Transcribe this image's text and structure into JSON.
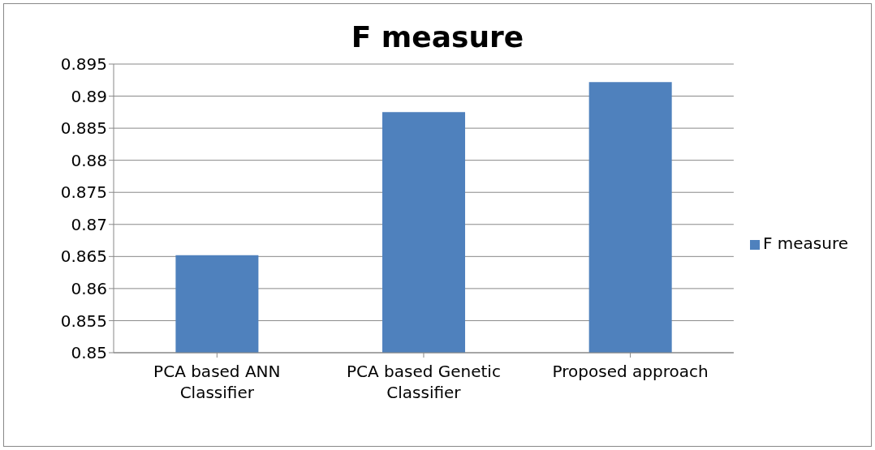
{
  "chart_data": {
    "type": "bar",
    "title": "F measure",
    "categories": [
      "PCA based ANN Classifier",
      "PCA based Genetic Classifier",
      "Proposed approach"
    ],
    "series": [
      {
        "name": "F measure",
        "color": "#4f81bd",
        "values": [
          0.8652,
          0.8875,
          0.8922
        ]
      }
    ],
    "ylim": [
      0.85,
      0.895
    ],
    "yticks": [
      0.85,
      0.855,
      0.86,
      0.865,
      0.87,
      0.875,
      0.88,
      0.885,
      0.89,
      0.895
    ],
    "grid": "y",
    "legend": "right"
  }
}
